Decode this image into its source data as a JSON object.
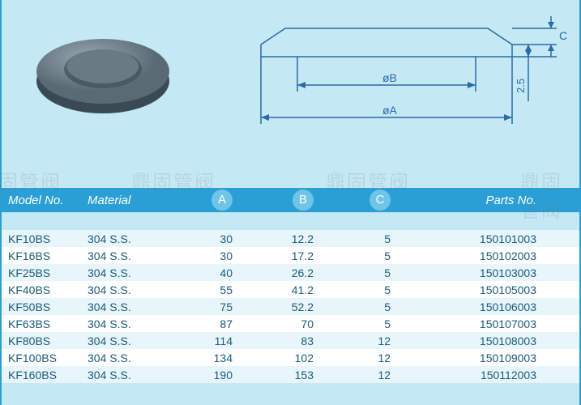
{
  "diagram": {
    "label_diaA": "øA",
    "label_diaB": "øB",
    "label_C": "C",
    "label_offset": "2.5",
    "bg": "#c4e8f4",
    "line_color": "#2a6aa8",
    "disc_top": "#7a8a94",
    "disc_side": "#4a5a64"
  },
  "watermark_text": "鼎固管阀",
  "table": {
    "headers": {
      "model": "Model No.",
      "material": "Material",
      "a": "A",
      "b": "B",
      "c": "C",
      "parts": "Parts No."
    },
    "rows": [
      {
        "model": "KF10BS",
        "material": "304 S.S.",
        "a": "30",
        "b": "12.2",
        "c": "5",
        "parts": "150101003"
      },
      {
        "model": "KF16BS",
        "material": "304 S.S.",
        "a": "30",
        "b": "17.2",
        "c": "5",
        "parts": "150102003"
      },
      {
        "model": "KF25BS",
        "material": "304 S.S.",
        "a": "40",
        "b": "26.2",
        "c": "5",
        "parts": "150103003"
      },
      {
        "model": "KF40BS",
        "material": "304 S.S.",
        "a": "55",
        "b": "41.2",
        "c": "5",
        "parts": "150105003"
      },
      {
        "model": "KF50BS",
        "material": "304 S.S.",
        "a": "75",
        "b": "52.2",
        "c": "5",
        "parts": "150106003"
      },
      {
        "model": "KF63BS",
        "material": "304 S.S.",
        "a": "87",
        "b": "70",
        "c": "5",
        "parts": "150107003"
      },
      {
        "model": "KF80BS",
        "material": "304 S.S.",
        "a": "114",
        "b": "83",
        "c": "12",
        "parts": "150108003"
      },
      {
        "model": "KF100BS",
        "material": "304 S.S.",
        "a": "134",
        "b": "102",
        "c": "12",
        "parts": "150109003"
      },
      {
        "model": "KF160BS",
        "material": "304 S.S.",
        "a": "190",
        "b": "153",
        "c": "12",
        "parts": "150112003"
      }
    ]
  }
}
